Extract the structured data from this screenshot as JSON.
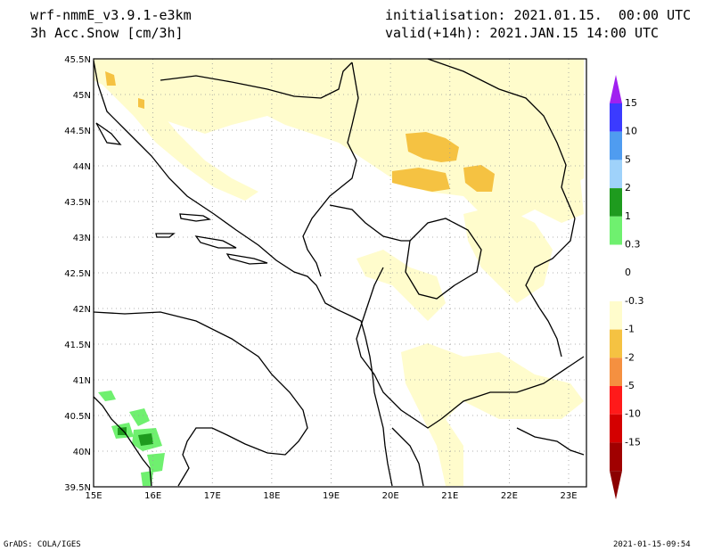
{
  "header": {
    "model": "wrf-nmmE_v3.9.1-e3km",
    "variable": "3h Acc.Snow [cm/3h]",
    "init": "initialisation: 2021.01.15.  00:00 UTC",
    "valid": "valid(+14h): 2021.JAN.15 14:00 UTC"
  },
  "footer": {
    "left": "GrADS: COLA/IGES",
    "right": "2021-01-15-09:54"
  },
  "map": {
    "lon_range": [
      15,
      23.3
    ],
    "lat_range": [
      39.5,
      45.5
    ],
    "lon_ticks": [
      {
        "v": 15,
        "label": "15E"
      },
      {
        "v": 16,
        "label": "16E"
      },
      {
        "v": 17,
        "label": "17E"
      },
      {
        "v": 18,
        "label": "18E"
      },
      {
        "v": 19,
        "label": "19E"
      },
      {
        "v": 20,
        "label": "20E"
      },
      {
        "v": 21,
        "label": "21E"
      },
      {
        "v": 22,
        "label": "22E"
      },
      {
        "v": 23,
        "label": "23E"
      }
    ],
    "lat_ticks": [
      {
        "v": 39.5,
        "label": "39.5N"
      },
      {
        "v": 40,
        "label": "40N"
      },
      {
        "v": 40.5,
        "label": "40.5N"
      },
      {
        "v": 41,
        "label": "41N"
      },
      {
        "v": 41.5,
        "label": "41.5N"
      },
      {
        "v": 42,
        "label": "42N"
      },
      {
        "v": 42.5,
        "label": "42.5N"
      },
      {
        "v": 43,
        "label": "43N"
      },
      {
        "v": 43.5,
        "label": "43.5N"
      },
      {
        "v": 44,
        "label": "44N"
      },
      {
        "v": 44.5,
        "label": "44.5N"
      },
      {
        "v": 45,
        "label": "45N"
      },
      {
        "v": 45.5,
        "label": "45.5N"
      }
    ],
    "grid": "dotted"
  },
  "colorbar": {
    "top_arrow_color": "#a020f0",
    "bottom_arrow_color": "#8b0000",
    "bins": [
      {
        "color": "#3b3bff",
        "label": "15"
      },
      {
        "color": "#4f9cf0",
        "label": "10"
      },
      {
        "color": "#9fd2fa",
        "label": "5"
      },
      {
        "color": "#1e9b1e",
        "label": "2"
      },
      {
        "color": "#6ff06f",
        "label": "1"
      },
      {
        "color": "#ffffff",
        "label": "0.3"
      },
      {
        "color": "#ffffff",
        "label": "0"
      },
      {
        "color": "#fffccc",
        "label": "-0.3"
      },
      {
        "color": "#f5c242",
        "label": "-1"
      },
      {
        "color": "#f59040",
        "label": "-2"
      },
      {
        "color": "#ff1a1a",
        "label": "-5"
      },
      {
        "color": "#d40000",
        "label": "-10"
      },
      {
        "color": "#a00000",
        "label": "-15"
      }
    ]
  },
  "colors": {
    "light_snow": "#fffccc",
    "moderate_snow": "#f5c242",
    "green_light": "#6ff06f",
    "green_dark": "#1e9b1e"
  }
}
